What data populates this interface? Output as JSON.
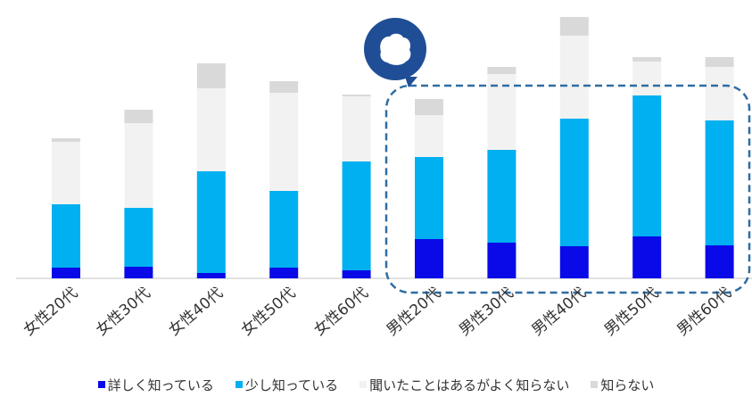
{
  "chart_data": {
    "type": "bar",
    "stacked": true,
    "categories": [
      "女性20代",
      "女性30代",
      "女性40代",
      "女性50代",
      "女性60代",
      "男性20代",
      "男性30代",
      "男性40代",
      "男性50代",
      "男性60代"
    ],
    "series": [
      {
        "name": "詳しく知っている",
        "color": "#0A0AE8",
        "values": [
          12,
          13,
          6,
          12,
          9,
          44,
          40,
          36,
          47,
          37
        ]
      },
      {
        "name": "少し知っている",
        "color": "#00B0F0",
        "values": [
          71,
          66,
          114,
          86,
          122,
          92,
          104,
          143,
          158,
          140
        ]
      },
      {
        "name": "聞いたことはあるがよく知らない",
        "color": "#F2F2F2",
        "values": [
          70,
          95,
          93,
          110,
          73,
          47,
          85,
          93,
          38,
          60
        ]
      },
      {
        "name": "知らない",
        "color": "#D9D9D9",
        "values": [
          4,
          15,
          28,
          13,
          2,
          18,
          8,
          21,
          5,
          11
        ]
      }
    ],
    "highlight": {
      "from_category": "男性20代",
      "to_category": "男性60代",
      "style": "dashed-rounded-box",
      "color": "#2E6DA4",
      "badge_icon": "head-silhouette-icon"
    },
    "axis": {
      "baseline": true,
      "y_ticks_shown": false
    },
    "legend_position": "bottom",
    "grid": false
  }
}
